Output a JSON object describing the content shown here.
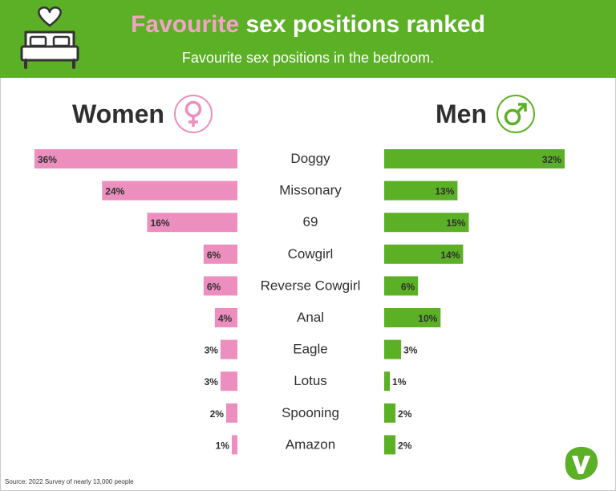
{
  "header": {
    "title_accent": "Favourite",
    "title_rest": " sex positions ranked",
    "subtitle": "Favourite sex positions in the bedroom."
  },
  "groups": {
    "women": "Women",
    "men": "Men"
  },
  "icons": {
    "header": "bed-with-heart-icon",
    "women": "female-symbol-icon",
    "men": "male-symbol-icon",
    "logo": "brand-v-logo-icon"
  },
  "colors": {
    "green": "#5bb025",
    "pink": "#ec8fbe",
    "pink_title": "#f4a3c8",
    "text": "#2f2f2f"
  },
  "chart_data": {
    "type": "bar",
    "categories": [
      "Doggy",
      "Missonary",
      "69",
      "Cowgirl",
      "Reverse Cowgirl",
      "Anal",
      "Eagle",
      "Lotus",
      "Spooning",
      "Amazon"
    ],
    "series": [
      {
        "name": "Women",
        "values": [
          36,
          24,
          16,
          6,
          6,
          4,
          3,
          3,
          2,
          1
        ],
        "labels": [
          "36%",
          "24%",
          "16%",
          "6%",
          "6%",
          "4%",
          "3%",
          "3%",
          "2%",
          "1%"
        ]
      },
      {
        "name": "Men",
        "values": [
          32,
          13,
          15,
          14,
          6,
          10,
          3,
          1,
          2,
          2
        ],
        "labels": [
          "32%",
          "13%",
          "15%",
          "14%",
          "6%",
          "10%",
          "3%",
          "1%",
          "2%",
          "2%"
        ]
      }
    ],
    "unit": "%"
  },
  "footer": {
    "source": "Source: 2022 Survey of nearly 13,000 people"
  }
}
